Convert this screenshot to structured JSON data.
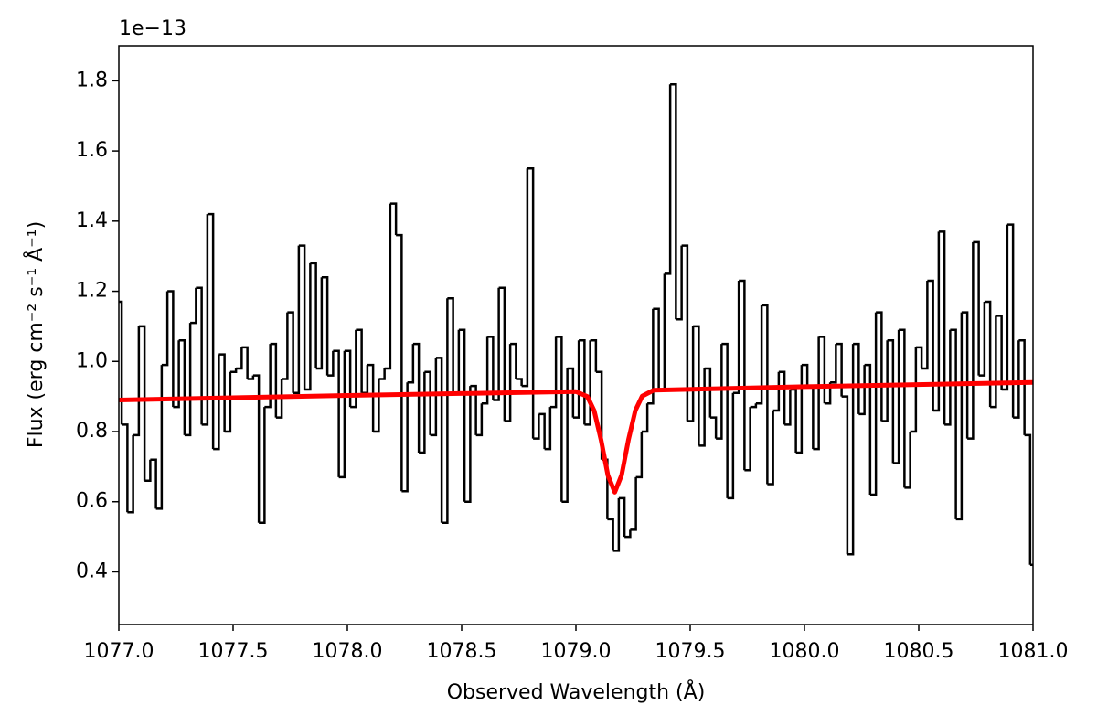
{
  "chart_data": {
    "type": "line",
    "offset_text": "1e−13",
    "xlabel": "Observed Wavelength (Å)",
    "ylabel": "Flux (erg cm⁻² s⁻¹ Å⁻¹)",
    "xlim": [
      1077.0,
      1081.0
    ],
    "ylim": [
      0.25,
      1.9
    ],
    "xticks": [
      {
        "value": 1077.0,
        "label": "1077.0"
      },
      {
        "value": 1077.5,
        "label": "1077.5"
      },
      {
        "value": 1078.0,
        "label": "1078.0"
      },
      {
        "value": 1078.5,
        "label": "1078.5"
      },
      {
        "value": 1079.0,
        "label": "1079.0"
      },
      {
        "value": 1079.5,
        "label": "1079.5"
      },
      {
        "value": 1080.0,
        "label": "1080.0"
      },
      {
        "value": 1080.5,
        "label": "1080.5"
      },
      {
        "value": 1081.0,
        "label": "1081.0"
      }
    ],
    "yticks": [
      0.4,
      0.6,
      0.8,
      {
        "value": 1,
        "label": "1.0"
      },
      1.2,
      1.4,
      1.6,
      1.8
    ],
    "grid": false,
    "series": [
      {
        "drawstyle": "steps-mid",
        "color": "#000000",
        "x": [
          1077.0,
          1077.025,
          1077.05,
          1077.075,
          1077.1,
          1077.125,
          1077.15,
          1077.175,
          1077.2,
          1077.225,
          1077.25,
          1077.275,
          1077.3,
          1077.325,
          1077.35,
          1077.375,
          1077.4,
          1077.425,
          1077.45,
          1077.475,
          1077.5,
          1077.525,
          1077.55,
          1077.575,
          1077.6,
          1077.625,
          1077.65,
          1077.675,
          1077.7,
          1077.725,
          1077.75,
          1077.775,
          1077.8,
          1077.825,
          1077.85,
          1077.875,
          1077.9,
          1077.925,
          1077.95,
          1077.975,
          1078.0,
          1078.025,
          1078.05,
          1078.075,
          1078.1,
          1078.125,
          1078.15,
          1078.175,
          1078.2,
          1078.225,
          1078.25,
          1078.275,
          1078.3,
          1078.325,
          1078.35,
          1078.375,
          1078.4,
          1078.425,
          1078.45,
          1078.475,
          1078.5,
          1078.525,
          1078.55,
          1078.575,
          1078.6,
          1078.625,
          1078.65,
          1078.675,
          1078.7,
          1078.725,
          1078.75,
          1078.775,
          1078.8,
          1078.825,
          1078.85,
          1078.875,
          1078.9,
          1078.925,
          1078.95,
          1078.975,
          1079.0,
          1079.025,
          1079.05,
          1079.075,
          1079.1,
          1079.125,
          1079.15,
          1079.175,
          1079.2,
          1079.225,
          1079.25,
          1079.275,
          1079.3,
          1079.325,
          1079.35,
          1079.375,
          1079.4,
          1079.425,
          1079.45,
          1079.475,
          1079.5,
          1079.525,
          1079.55,
          1079.575,
          1079.6,
          1079.625,
          1079.65,
          1079.675,
          1079.7,
          1079.725,
          1079.75,
          1079.775,
          1079.8,
          1079.825,
          1079.85,
          1079.875,
          1079.9,
          1079.925,
          1079.95,
          1079.975,
          1080.0,
          1080.025,
          1080.05,
          1080.075,
          1080.1,
          1080.125,
          1080.15,
          1080.175,
          1080.2,
          1080.225,
          1080.25,
          1080.275,
          1080.3,
          1080.325,
          1080.35,
          1080.375,
          1080.4,
          1080.425,
          1080.45,
          1080.475,
          1080.5,
          1080.525,
          1080.55,
          1080.575,
          1080.6,
          1080.625,
          1080.65,
          1080.675,
          1080.7,
          1080.725,
          1080.75,
          1080.775,
          1080.8,
          1080.825,
          1080.85,
          1080.875,
          1080.9,
          1080.925,
          1080.95,
          1080.975,
          1081.0
        ],
        "values": [
          1.17,
          0.82,
          0.57,
          0.79,
          1.1,
          0.66,
          0.72,
          0.58,
          0.99,
          1.2,
          0.87,
          1.06,
          0.79,
          1.11,
          1.21,
          0.82,
          1.42,
          0.75,
          1.02,
          0.8,
          0.97,
          0.98,
          1.04,
          0.95,
          0.96,
          0.54,
          0.87,
          1.05,
          0.84,
          0.95,
          1.14,
          0.91,
          1.33,
          0.92,
          1.28,
          0.98,
          1.24,
          0.96,
          1.03,
          0.67,
          1.03,
          0.87,
          1.09,
          0.91,
          0.99,
          0.8,
          0.95,
          0.98,
          1.45,
          1.36,
          0.63,
          0.94,
          1.05,
          0.74,
          0.97,
          0.79,
          1.01,
          0.54,
          1.18,
          0.91,
          1.09,
          0.6,
          0.93,
          0.79,
          0.88,
          1.07,
          0.89,
          1.21,
          0.83,
          1.05,
          0.95,
          0.93,
          1.55,
          0.78,
          0.85,
          0.75,
          0.87,
          1.07,
          0.6,
          0.98,
          0.84,
          1.06,
          0.82,
          1.06,
          0.97,
          0.72,
          0.55,
          0.46,
          0.61,
          0.5,
          0.52,
          0.67,
          0.8,
          0.88,
          1.15,
          0.92,
          1.25,
          1.79,
          1.12,
          1.33,
          0.83,
          1.1,
          0.76,
          0.98,
          0.84,
          0.78,
          1.05,
          0.61,
          0.91,
          1.23,
          0.69,
          0.87,
          0.88,
          1.16,
          0.65,
          0.86,
          0.97,
          0.82,
          0.92,
          0.74,
          0.99,
          0.93,
          0.75,
          1.07,
          0.88,
          0.94,
          1.05,
          0.9,
          0.45,
          1.05,
          0.85,
          0.99,
          0.62,
          1.14,
          0.83,
          1.06,
          0.71,
          1.09,
          0.64,
          0.8,
          1.04,
          0.98,
          1.23,
          0.86,
          1.37,
          0.82,
          1.09,
          0.55,
          1.14,
          0.78,
          1.34,
          0.96,
          1.17,
          0.87,
          1.13,
          0.92,
          1.39,
          0.84,
          1.06,
          0.79,
          0.42
        ]
      },
      {
        "drawstyle": "default",
        "color": "#ff0000",
        "x": [
          1077.0,
          1078.0,
          1079.0,
          1079.05,
          1079.08,
          1079.11,
          1079.14,
          1079.17,
          1079.2,
          1079.23,
          1079.26,
          1079.29,
          1079.34,
          1080.0,
          1081.0
        ],
        "values": [
          0.89,
          0.903,
          0.914,
          0.9,
          0.859,
          0.776,
          0.675,
          0.627,
          0.676,
          0.777,
          0.86,
          0.901,
          0.918,
          0.928,
          0.94
        ]
      }
    ]
  }
}
